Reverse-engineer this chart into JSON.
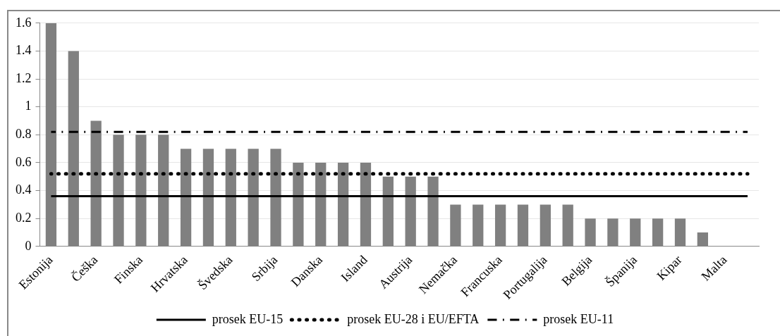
{
  "chart_data": {
    "type": "bar",
    "categories": [
      "Estonija",
      null,
      "Češka",
      null,
      "Finska",
      null,
      "Hrvatska",
      null,
      "Švedska",
      null,
      "Srbija",
      null,
      "Danska",
      null,
      "Island",
      null,
      "Austrija",
      null,
      "Nemačka",
      null,
      "Francuska",
      null,
      "Portugalija",
      null,
      "Belgija",
      null,
      "Španija",
      null,
      "Kipar",
      null,
      "Malta",
      null
    ],
    "series": [
      {
        "color": "#808080",
        "values": [
          1.6,
          1.4,
          0.9,
          0.8,
          0.8,
          0.8,
          0.7,
          0.7,
          0.7,
          0.7,
          0.7,
          0.6,
          0.6,
          0.6,
          0.6,
          0.5,
          0.5,
          0.5,
          0.3,
          0.3,
          0.3,
          0.3,
          0.3,
          0.3,
          0.2,
          0.2,
          0.2,
          0.2,
          0.2,
          0.1,
          0,
          null
        ]
      },
      {
        "type": "line",
        "name": "prosek EU-15",
        "color": "#000000",
        "line_style": "solid",
        "values": [
          0.36,
          0.36,
          0.36,
          0.36,
          0.36,
          0.36,
          0.36,
          0.36,
          0.36,
          0.36,
          0.36,
          0.36,
          0.36,
          0.36,
          0.36,
          0.36,
          0.36,
          0.36,
          0.36,
          0.36,
          0.36,
          0.36,
          0.36,
          0.36,
          0.36,
          0.36,
          0.36,
          0.36,
          0.36,
          0.36,
          0.36,
          0.36
        ]
      },
      {
        "type": "line",
        "name": "prosek EU-28 i EU/EFTA",
        "color": "#000000",
        "line_style": "dotted",
        "values": [
          0.52,
          0.52,
          0.52,
          0.52,
          0.52,
          0.52,
          0.52,
          0.52,
          0.52,
          0.52,
          0.52,
          0.52,
          0.52,
          0.52,
          0.52,
          0.52,
          0.52,
          0.52,
          0.52,
          0.52,
          0.52,
          0.52,
          0.52,
          0.52,
          0.52,
          0.52,
          0.52,
          0.52,
          0.52,
          0.52,
          0.52,
          0.52
        ]
      },
      {
        "type": "line",
        "name": "prosek EU-11",
        "color": "#000000",
        "line_style": "dashdot",
        "values": [
          0.82,
          0.82,
          0.82,
          0.82,
          0.82,
          0.82,
          0.82,
          0.82,
          0.82,
          0.82,
          0.82,
          0.82,
          0.82,
          0.82,
          0.82,
          0.82,
          0.82,
          0.82,
          0.82,
          0.82,
          0.82,
          0.82,
          0.82,
          0.82,
          0.82,
          0.82,
          0.82,
          0.82,
          0.82,
          0.82,
          0.82,
          0.82
        ]
      }
    ],
    "ylim": [
      0,
      1.6
    ],
    "yticks": [
      0,
      0.2,
      0.4,
      0.6,
      0.8,
      1,
      1.2,
      1.4,
      1.6
    ],
    "grid": "y",
    "legend": "bottom"
  }
}
